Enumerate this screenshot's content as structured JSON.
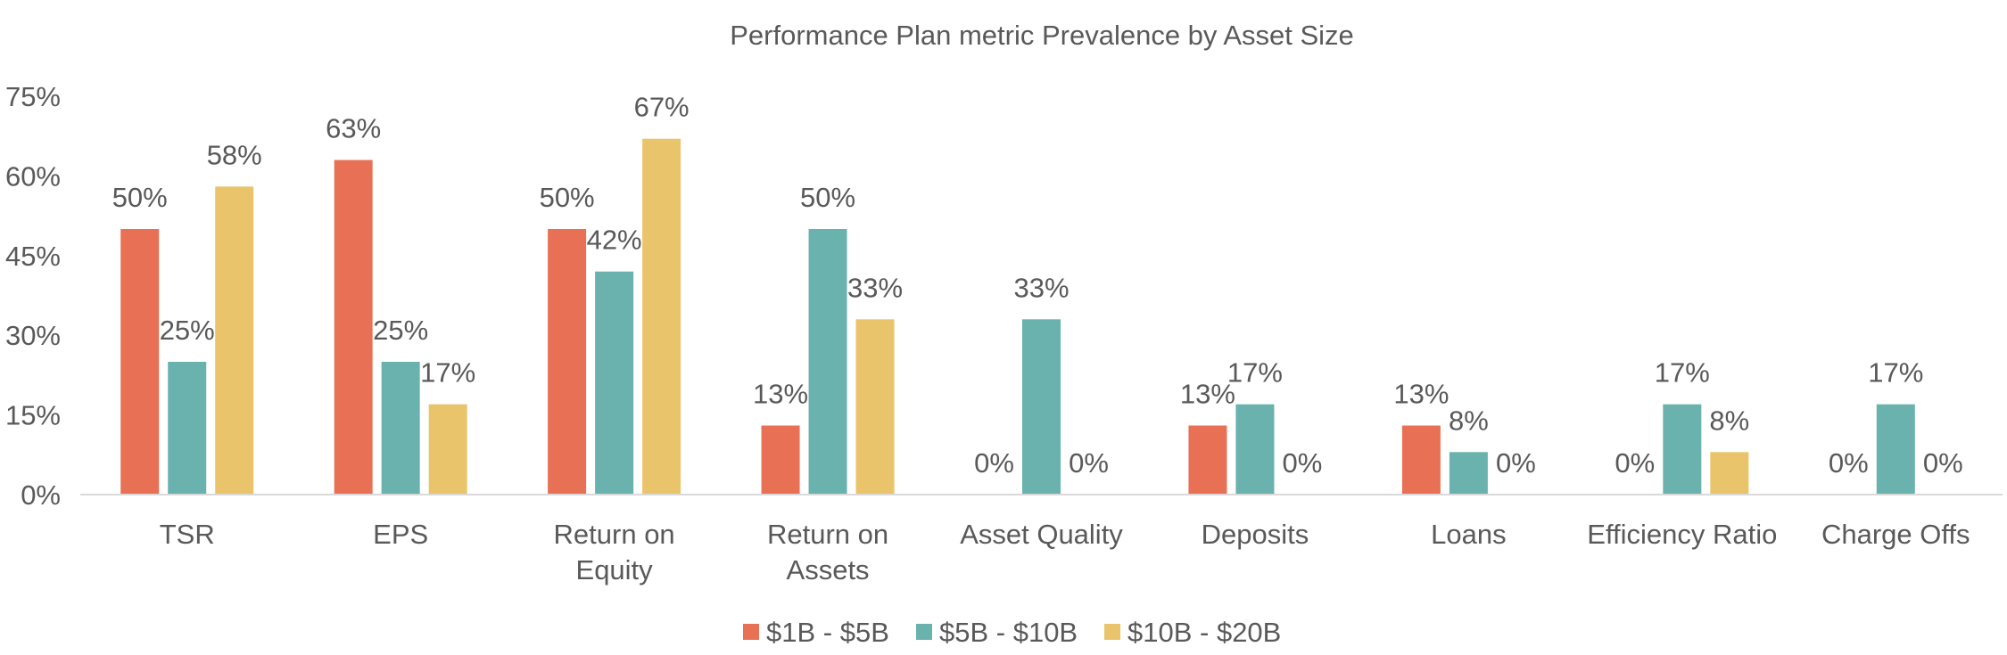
{
  "chart_data": {
    "type": "bar",
    "title": "Performance Plan metric Prevalence by Asset Size",
    "categories": [
      [
        "TSR"
      ],
      [
        "EPS"
      ],
      [
        "Return on",
        "Equity"
      ],
      [
        "Return on",
        "Assets"
      ],
      [
        "Asset Quality"
      ],
      [
        "Deposits"
      ],
      [
        "Loans"
      ],
      [
        "Efficiency Ratio"
      ],
      [
        "Charge Offs"
      ]
    ],
    "series": [
      {
        "name": "$1B - $5B",
        "color": "#E87155",
        "values": [
          50,
          63,
          50,
          13,
          0,
          13,
          13,
          0,
          0
        ]
      },
      {
        "name": "$5B - $10B",
        "color": "#69B2AD",
        "values": [
          25,
          25,
          42,
          50,
          33,
          17,
          8,
          17,
          17
        ]
      },
      {
        "name": "$10B - $20B",
        "color": "#E9C46A",
        "values": [
          58,
          17,
          67,
          33,
          0,
          0,
          0,
          8,
          0
        ]
      }
    ],
    "data_label_suffix": "%",
    "ylim": [
      0,
      75
    ],
    "yticks": [
      0,
      15,
      30,
      45,
      60,
      75
    ],
    "ytick_labels": [
      "0%",
      "15%",
      "30%",
      "45%",
      "60%",
      "75%"
    ],
    "xlabel": "",
    "ylabel": "",
    "grid": false,
    "legend_position": "bottom"
  }
}
